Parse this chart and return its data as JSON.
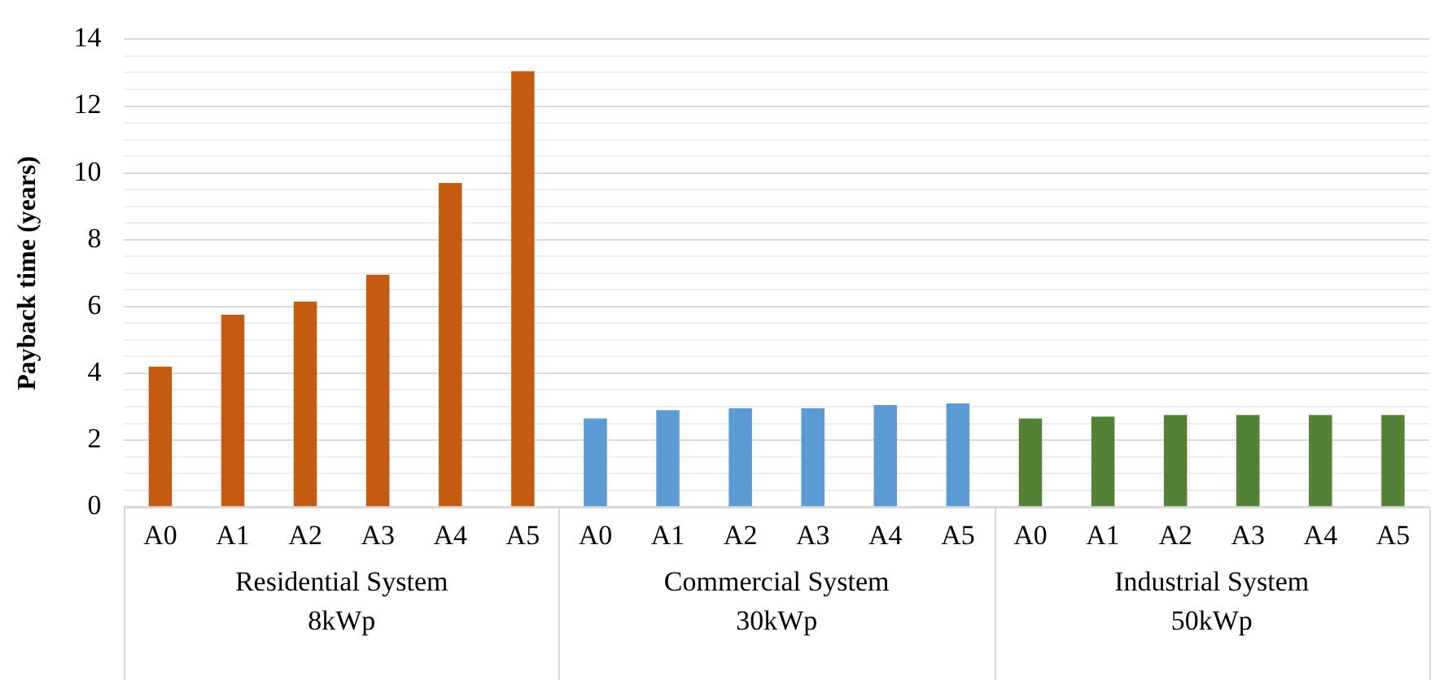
{
  "chart_data": {
    "type": "bar",
    "ylabel": "Payback time (years)",
    "categories": [
      "A0",
      "A1",
      "A2",
      "A3",
      "A4",
      "A5",
      "A0",
      "A1",
      "A2",
      "A3",
      "A4",
      "A5",
      "A0",
      "A1",
      "A2",
      "A3",
      "A4",
      "A5"
    ],
    "series": [
      {
        "name": "Residential System\n8kWp",
        "color": "#c55a11",
        "values": [
          4.2,
          5.75,
          6.15,
          6.95,
          9.7,
          13.05,
          null,
          null,
          null,
          null,
          null,
          null,
          null,
          null,
          null,
          null,
          null,
          null
        ]
      },
      {
        "name": "Commercial System\n30kWp",
        "color": "#5b9bd5",
        "values": [
          null,
          null,
          null,
          null,
          null,
          null,
          2.65,
          2.9,
          2.95,
          2.95,
          3.05,
          3.1,
          null,
          null,
          null,
          null,
          null,
          null
        ]
      },
      {
        "name": "Industrial System\n50kWp",
        "color": "#548235",
        "values": [
          null,
          null,
          null,
          null,
          null,
          null,
          null,
          null,
          null,
          null,
          null,
          null,
          2.65,
          2.7,
          2.75,
          2.75,
          2.75,
          2.75
        ]
      }
    ],
    "ylim": [
      0,
      14
    ],
    "yticks": [
      0,
      {
        "value": 0.5,
        "label": null
      },
      {
        "value": 1,
        "label": null
      },
      {
        "value": 1.5,
        "label": null
      },
      2,
      {
        "value": 2.5,
        "label": null
      },
      {
        "value": 3,
        "label": null
      },
      {
        "value": 3.5,
        "label": null
      },
      4,
      {
        "value": 4.5,
        "label": null
      },
      {
        "value": 5,
        "label": null
      },
      {
        "value": 5.5,
        "label": null
      },
      6,
      {
        "value": 6.5,
        "label": null
      },
      {
        "value": 7,
        "label": null
      },
      {
        "value": 7.5,
        "label": null
      },
      8,
      {
        "value": 8.5,
        "label": null
      },
      {
        "value": 9,
        "label": null
      },
      {
        "value": 9.5,
        "label": null
      },
      10,
      {
        "value": 10.5,
        "label": null
      },
      {
        "value": 11,
        "label": null
      },
      {
        "value": 11.5,
        "label": null
      },
      12,
      {
        "value": 12.5,
        "label": null
      },
      {
        "value": 13,
        "label": null
      },
      {
        "value": 13.5,
        "label": null
      },
      14
    ],
    "grid": "y",
    "legend": false
  }
}
